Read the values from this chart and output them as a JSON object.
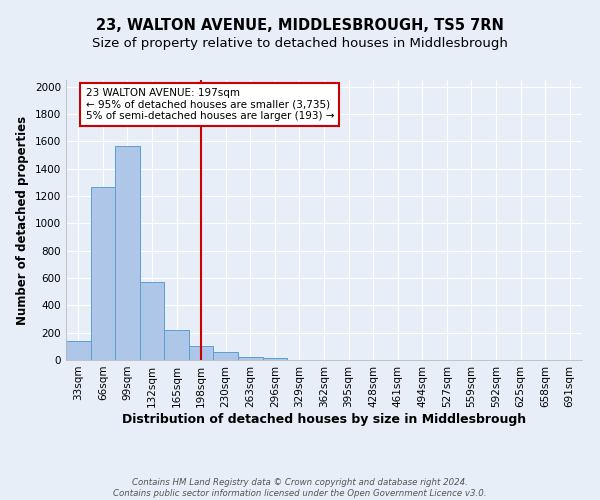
{
  "title": "23, WALTON AVENUE, MIDDLESBROUGH, TS5 7RN",
  "subtitle": "Size of property relative to detached houses in Middlesbrough",
  "xlabel": "Distribution of detached houses by size in Middlesbrough",
  "ylabel": "Number of detached properties",
  "footer_line1": "Contains HM Land Registry data © Crown copyright and database right 2024.",
  "footer_line2": "Contains public sector information licensed under the Open Government Licence v3.0.",
  "categories": [
    "33sqm",
    "66sqm",
    "99sqm",
    "132sqm",
    "165sqm",
    "198sqm",
    "230sqm",
    "263sqm",
    "296sqm",
    "329sqm",
    "362sqm",
    "395sqm",
    "428sqm",
    "461sqm",
    "494sqm",
    "527sqm",
    "559sqm",
    "592sqm",
    "625sqm",
    "658sqm",
    "691sqm"
  ],
  "values": [
    140,
    1265,
    1570,
    570,
    220,
    100,
    55,
    25,
    15,
    0,
    0,
    0,
    0,
    0,
    0,
    0,
    0,
    0,
    0,
    0,
    0
  ],
  "bar_color": "#aec6e8",
  "bar_edge_color": "#5a9fd4",
  "vline_color": "#cc0000",
  "vline_x_index": 5.0,
  "annotation_line1": "23 WALTON AVENUE: 197sqm",
  "annotation_line2": "← 95% of detached houses are smaller (3,735)",
  "annotation_line3": "5% of semi-detached houses are larger (193) →",
  "annotation_box_color": "#ffffff",
  "annotation_box_edge": "#cc0000",
  "ylim": [
    0,
    2050
  ],
  "yticks": [
    0,
    200,
    400,
    600,
    800,
    1000,
    1200,
    1400,
    1600,
    1800,
    2000
  ],
  "bg_color": "#e8eef7",
  "grid_color": "#ffffff",
  "title_fontsize": 10.5,
  "subtitle_fontsize": 9.5,
  "xlabel_fontsize": 9,
  "ylabel_fontsize": 8.5,
  "tick_fontsize": 7.5,
  "annotation_fontsize": 7.5,
  "footer_fontsize": 6.2
}
